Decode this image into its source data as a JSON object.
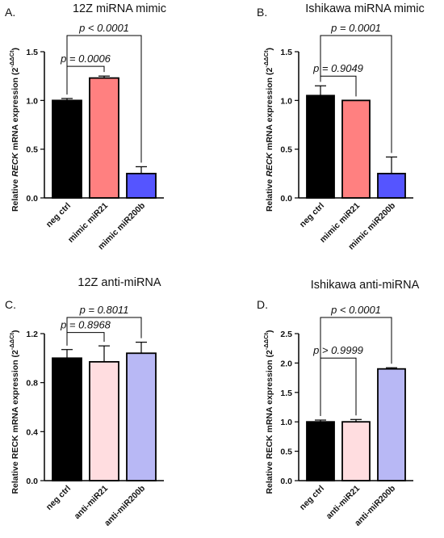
{
  "chart_data": [
    {
      "type": "bar",
      "panel_label": "A.",
      "title": "12Z miRNA mimic",
      "ylabel_prefix": "Relative",
      "ylabel_gene": "RECK",
      "ylabel_gene_italic": true,
      "ylabel_suffix": "mRNA expression (2",
      "ylabel_exponent": "-ΔΔCt",
      "ylabel_close": ")",
      "categories": [
        "neg ctrl",
        "mimic miR21",
        "mimic miR200b"
      ],
      "values": [
        1.0,
        1.23,
        0.25
      ],
      "errors": [
        0.02,
        0.02,
        0.07
      ],
      "colors": [
        "#000000",
        "#ff8080",
        "#5555ff"
      ],
      "ylim": [
        0,
        1.5
      ],
      "yticks": [
        "0.0",
        "0.5",
        "1.0",
        "1.5"
      ],
      "comparisons": [
        {
          "from": 0,
          "to": 1,
          "label": "p = 0.0006",
          "level": 0
        },
        {
          "from": 0,
          "to": 2,
          "label": "p < 0.0001",
          "level": 1
        }
      ]
    },
    {
      "type": "bar",
      "panel_label": "B.",
      "title": "Ishikawa miRNA mimic",
      "ylabel_prefix": "Relative",
      "ylabel_gene": "RECK",
      "ylabel_gene_italic": true,
      "ylabel_suffix": "mRNA expression (2",
      "ylabel_exponent": "-ΔΔCt",
      "ylabel_close": ")",
      "categories": [
        "neg ctrl",
        "mimic miR21",
        "mimic miR200b"
      ],
      "values": [
        1.05,
        1.0,
        0.25
      ],
      "errors": [
        0.1,
        0.0,
        0.17
      ],
      "colors": [
        "#000000",
        "#ff8080",
        "#5555ff"
      ],
      "ylim": [
        0,
        1.5
      ],
      "yticks": [
        "0.0",
        "0.5",
        "1.0",
        "1.5"
      ],
      "comparisons": [
        {
          "from": 0,
          "to": 1,
          "label": "p = 0.9049",
          "level": 0
        },
        {
          "from": 0,
          "to": 2,
          "label": "p = 0.0001",
          "level": 1
        }
      ]
    },
    {
      "type": "bar",
      "panel_label": "C.",
      "title": "12Z anti-miRNA",
      "ylabel_prefix": "Relative",
      "ylabel_gene": "RECK",
      "ylabel_gene_italic": false,
      "ylabel_suffix": "mRNA expression (2",
      "ylabel_exponent": "-ΔΔCt",
      "ylabel_close": ")",
      "categories": [
        "neg ctrl",
        "anti-miR21",
        "anti-miR200b"
      ],
      "values": [
        1.0,
        0.97,
        1.04
      ],
      "errors": [
        0.07,
        0.13,
        0.09
      ],
      "colors": [
        "#000000",
        "#ffdde0",
        "#b8b8f5"
      ],
      "ylim": [
        0,
        1.2
      ],
      "yticks": [
        "0.0",
        "0.4",
        "0.8",
        "1.2"
      ],
      "comparisons": [
        {
          "from": 0,
          "to": 1,
          "label": "p = 0.8968",
          "level": 0
        },
        {
          "from": 0,
          "to": 2,
          "label": "p = 0.8011",
          "level": 1
        }
      ]
    },
    {
      "type": "bar",
      "panel_label": "D.",
      "title": "Ishikawa anti-miRNA",
      "ylabel_prefix": "Relative",
      "ylabel_gene": "RECK",
      "ylabel_gene_italic": false,
      "ylabel_suffix": "mRNA expression (2",
      "ylabel_exponent": "-ΔΔCt",
      "ylabel_close": ")",
      "categories": [
        "neg ctrl",
        "anti-miR21",
        "anti-miR200b"
      ],
      "values": [
        1.0,
        1.0,
        1.9
      ],
      "errors": [
        0.03,
        0.04,
        0.02
      ],
      "colors": [
        "#000000",
        "#ffdde0",
        "#b8b8f5"
      ],
      "ylim": [
        0,
        2.5
      ],
      "yticks": [
        "0.0",
        "0.5",
        "1.0",
        "1.5",
        "2.0",
        "2.5"
      ],
      "comparisons": [
        {
          "from": 0,
          "to": 1,
          "label": "p > 0.9999",
          "level": 0
        },
        {
          "from": 0,
          "to": 2,
          "label": "p < 0.0001",
          "level": 1
        }
      ]
    }
  ]
}
